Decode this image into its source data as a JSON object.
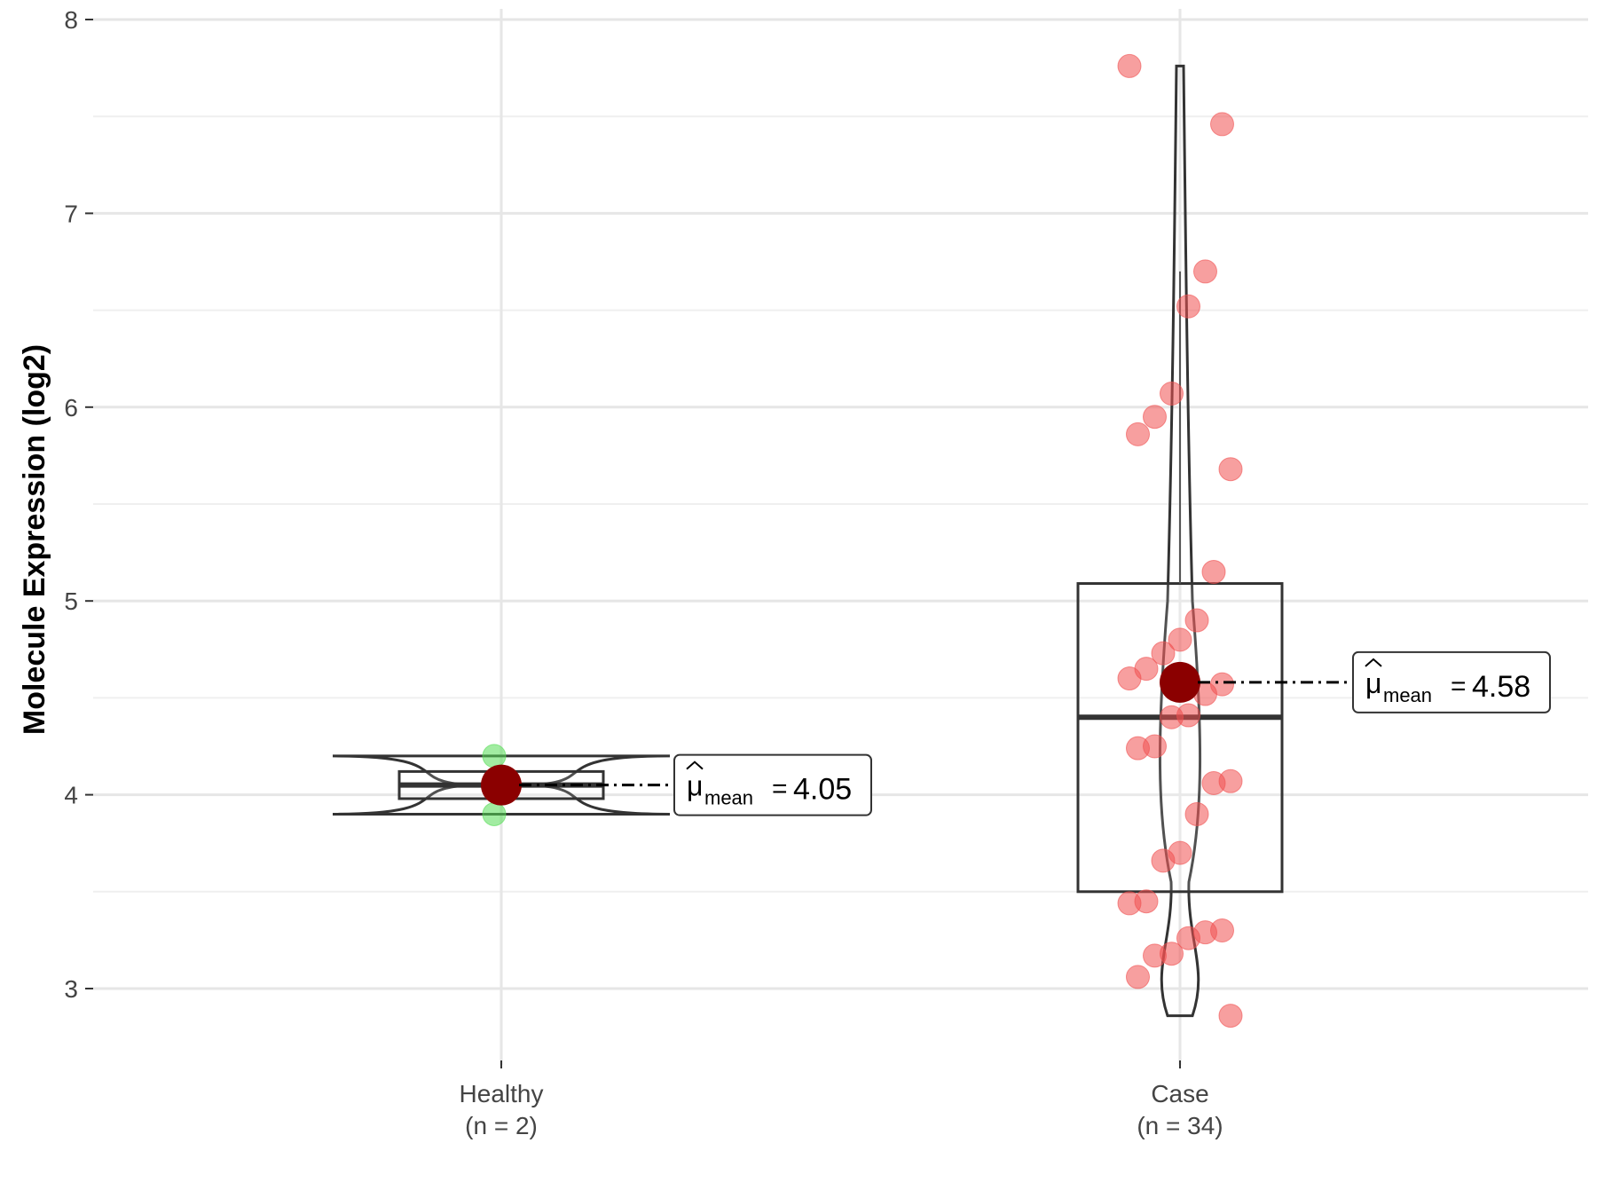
{
  "chart_data": {
    "type": "box-violin",
    "title": "",
    "xlabel": "",
    "ylabel": "Molecule Expression (log2)",
    "ylim": [
      2.3,
      8.1
    ],
    "yticks": [
      3,
      4,
      5,
      6,
      7,
      8
    ],
    "grid": true,
    "groups": [
      {
        "name": "Healthy",
        "n_label": "(n = 2)",
        "point_color": "#55dd55",
        "points": [
          4.2,
          3.9
        ],
        "box": {
          "q1": 3.98,
          "median": 4.05,
          "q3": 4.12
        },
        "violin_range": [
          3.9,
          4.2
        ],
        "mean": 4.05,
        "mean_label": "4.05"
      },
      {
        "name": "Case",
        "n_label": "(n = 34)",
        "point_color": "#f05050",
        "points": [
          7.76,
          7.46,
          6.7,
          6.52,
          6.07,
          5.95,
          5.86,
          5.68,
          5.15,
          4.9,
          4.8,
          4.73,
          4.65,
          4.6,
          4.57,
          4.52,
          4.41,
          4.4,
          4.25,
          4.24,
          4.07,
          4.06,
          3.9,
          3.7,
          3.66,
          3.45,
          3.44,
          3.3,
          3.29,
          3.26,
          3.18,
          3.17,
          3.06,
          2.86
        ],
        "box": {
          "q1": 3.5,
          "median": 4.4,
          "q3": 5.09,
          "whisker_high": 6.7
        },
        "violin_range": [
          2.86,
          7.76
        ],
        "mean": 4.58,
        "mean_label": "4.58"
      }
    ],
    "mean_symbol": "μ",
    "mean_subscript": "mean",
    "mean_color": "#8b0000"
  }
}
